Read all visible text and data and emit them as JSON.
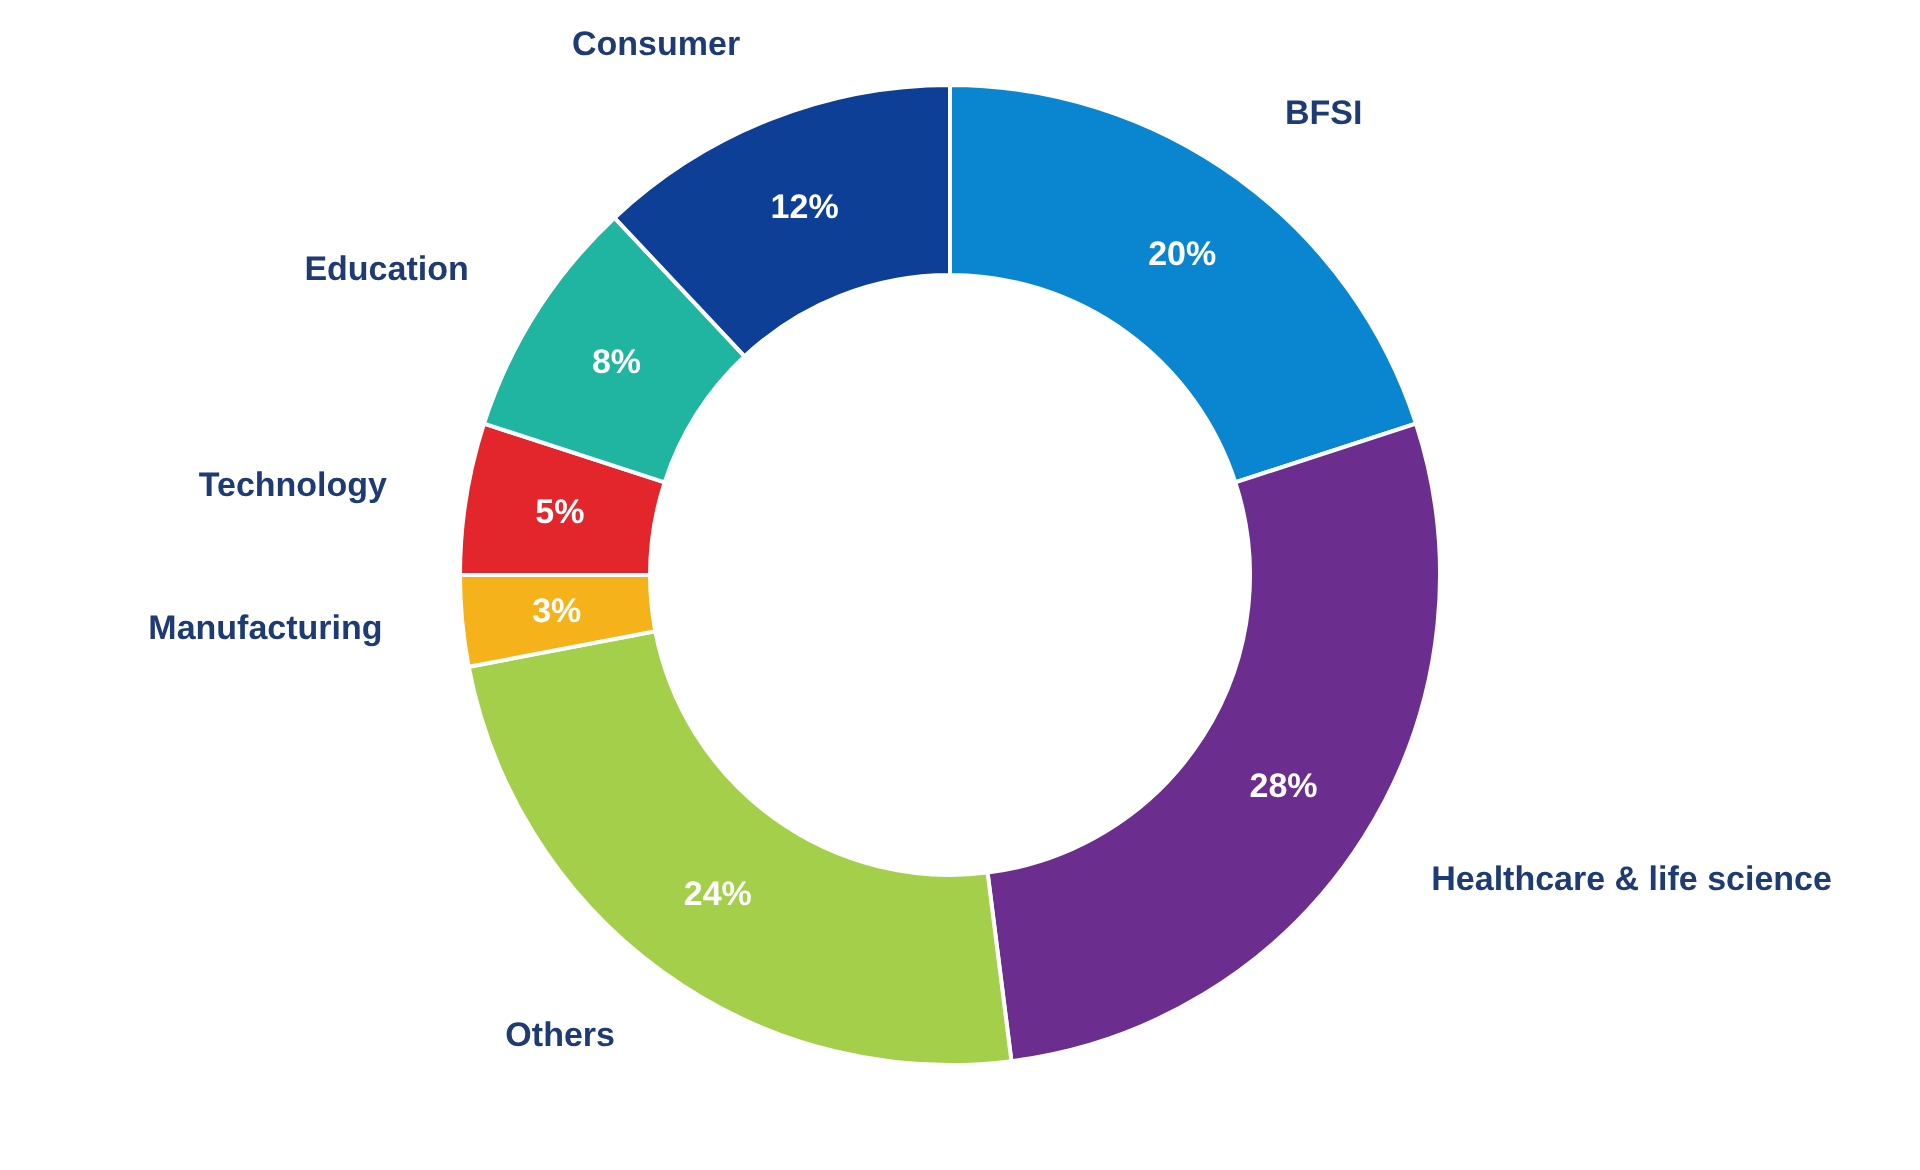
{
  "chart_data": {
    "type": "donut",
    "categories": [
      "BFSI",
      "Healthcare & life science",
      "Others",
      "Manufacturing",
      "Technology",
      "Education",
      "Consumer"
    ],
    "values": [
      20,
      28,
      24,
      3,
      5,
      8,
      12
    ],
    "colors": [
      "#0a86d0",
      "#6b2d8e",
      "#a3cf4a",
      "#f5b21a",
      "#e3262b",
      "#1fb5a0",
      "#0e3f96"
    ],
    "value_labels": [
      "20%",
      "28%",
      "24%",
      "3%",
      "5%",
      "8%",
      "12%"
    ],
    "legend": false
  }
}
